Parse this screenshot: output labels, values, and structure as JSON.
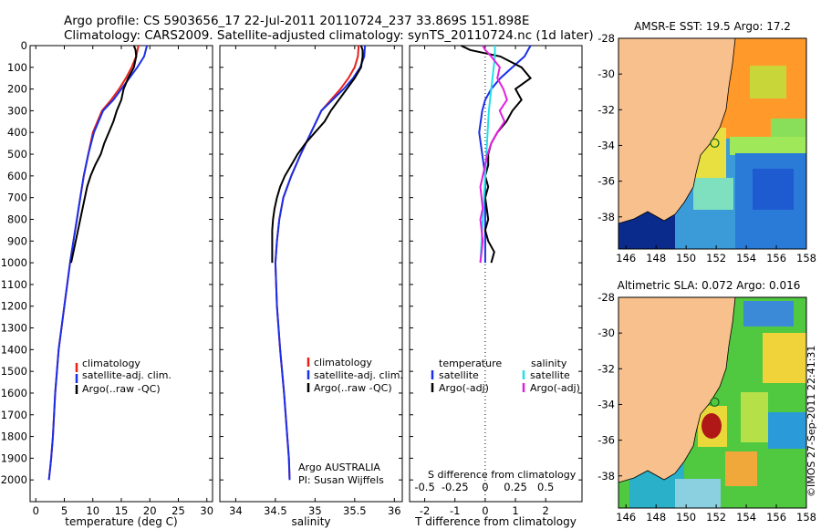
{
  "header": {
    "line1": "Argo profile: CS 5903656_17 22-Jul-2011 20110724_237 33.869S 151.898E",
    "line2": "Climatology: CARS2009. Satellite-adjusted climatology: synTS_20110724.nc (1d later)"
  },
  "colors": {
    "climatology": "#e8201a",
    "satellite": "#1a2fe8",
    "argo": "#000000",
    "sat_salinity": "#22e0e8",
    "argo_salinity": "#e020e0",
    "land": "#f7c08c"
  },
  "chart_data": [
    {
      "id": "temperature",
      "type": "line",
      "xlabel": "temperature (deg C)",
      "ylabel": "",
      "xlim": [
        -1,
        31
      ],
      "ylim": [
        0,
        2100
      ],
      "y_inverted": true,
      "xticks": [
        0,
        5,
        10,
        15,
        20,
        25,
        30
      ],
      "yticks": [
        0,
        100,
        200,
        300,
        400,
        500,
        600,
        700,
        800,
        900,
        1000,
        1100,
        1200,
        1300,
        1400,
        1500,
        1600,
        1700,
        1800,
        1900,
        2000
      ],
      "legend": [
        "climatology",
        "satellite-adj. clim.",
        "Argo(..raw -QC)"
      ],
      "legend_position": "lower-center",
      "series": [
        {
          "name": "climatology",
          "color": "#e8201a",
          "x": [
            18.0,
            17.6,
            16.8,
            15.8,
            14.6,
            13.2,
            11.6,
            10.0,
            9.2,
            8.4,
            7.8,
            7.2,
            6.6,
            6.0,
            5.0,
            4.0,
            3.4,
            3.0,
            2.7,
            2.5,
            2.3
          ],
          "y": [
            0,
            50,
            100,
            150,
            200,
            250,
            300,
            400,
            500,
            600,
            700,
            800,
            900,
            1000,
            1200,
            1400,
            1600,
            1800,
            1900,
            1950,
            2000
          ]
        },
        {
          "name": "satellite-adj. clim.",
          "color": "#1a2fe8",
          "x": [
            19.5,
            19.0,
            17.8,
            16.4,
            15.0,
            13.6,
            11.8,
            10.2,
            9.2,
            8.4,
            7.8,
            7.2,
            6.6,
            6.0,
            5.0,
            4.0,
            3.4,
            3.0,
            2.7,
            2.5,
            2.3
          ],
          "y": [
            0,
            50,
            100,
            150,
            200,
            250,
            300,
            400,
            500,
            600,
            700,
            800,
            900,
            1000,
            1200,
            1400,
            1600,
            1800,
            1900,
            1950,
            2000
          ]
        },
        {
          "name": "Argo(..raw -QC)",
          "color": "#000000",
          "x": [
            17.2,
            17.5,
            17.6,
            17.2,
            16.2,
            15.4,
            15.0,
            14.2,
            13.6,
            12.8,
            12.0,
            11.4,
            10.4,
            9.6,
            9.0,
            8.6,
            8.2,
            7.8,
            7.4,
            7.0,
            6.6,
            6.2
          ],
          "y": [
            0,
            20,
            50,
            100,
            150,
            200,
            250,
            300,
            350,
            400,
            450,
            500,
            550,
            600,
            650,
            700,
            750,
            800,
            850,
            900,
            950,
            1000
          ]
        }
      ]
    },
    {
      "id": "salinity",
      "type": "line",
      "xlabel": "salinity",
      "xlim": [
        33.8,
        36.1
      ],
      "ylim": [
        0,
        2100
      ],
      "y_inverted": true,
      "xticks": [
        34,
        34.5,
        35,
        35.5,
        36
      ],
      "xtick_labels": [
        "34",
        "34.5",
        "35",
        "35.5",
        "36"
      ],
      "legend": [
        "climatology",
        "satellite-adj. clim.",
        "Argo(..raw -QC)"
      ],
      "legend_position": "lower-right",
      "annotation": [
        "Argo AUSTRALIA",
        "PI: Susan Wijffels"
      ],
      "series": [
        {
          "name": "climatology",
          "color": "#e8201a",
          "x": [
            35.55,
            35.54,
            35.5,
            35.42,
            35.32,
            35.2,
            35.08,
            34.95,
            34.82,
            34.7,
            34.6,
            34.55,
            34.52,
            34.5,
            34.52,
            34.56,
            34.61,
            34.65,
            34.67,
            34.68
          ],
          "y": [
            0,
            50,
            100,
            150,
            200,
            250,
            300,
            400,
            500,
            600,
            700,
            800,
            900,
            1000,
            1200,
            1400,
            1600,
            1800,
            1900,
            2000
          ]
        },
        {
          "name": "satellite-adj. clim.",
          "color": "#1a2fe8",
          "x": [
            35.63,
            35.62,
            35.57,
            35.48,
            35.36,
            35.22,
            35.08,
            34.95,
            34.82,
            34.7,
            34.6,
            34.55,
            34.52,
            34.5,
            34.52,
            34.56,
            34.61,
            34.65,
            34.67,
            34.68
          ],
          "y": [
            0,
            50,
            100,
            150,
            200,
            250,
            300,
            400,
            500,
            600,
            700,
            800,
            900,
            1000,
            1200,
            1400,
            1600,
            1800,
            1900,
            2000
          ]
        },
        {
          "name": "Argo(..raw -QC)",
          "color": "#000000",
          "x": [
            35.58,
            35.6,
            35.6,
            35.58,
            35.5,
            35.4,
            35.3,
            35.2,
            35.12,
            35.0,
            34.88,
            34.78,
            34.7,
            34.62,
            34.56,
            34.52,
            34.49,
            34.47,
            34.46,
            34.46,
            34.46
          ],
          "y": [
            0,
            20,
            50,
            100,
            150,
            200,
            250,
            300,
            350,
            400,
            450,
            500,
            550,
            600,
            650,
            700,
            750,
            800,
            850,
            900,
            1000
          ]
        }
      ]
    },
    {
      "id": "difference",
      "type": "line",
      "xlabel": "T difference from climatology",
      "top_label": "S difference from climatology",
      "xlim": [
        -2.5,
        3.2
      ],
      "ylim": [
        0,
        2100
      ],
      "y_inverted": true,
      "xticks": [
        -2,
        -1,
        0,
        1,
        2
      ],
      "xtick_labels": [
        "-2",
        "-1",
        "0",
        "1",
        "2"
      ],
      "sticks": [
        -0.5,
        -0.25,
        0,
        0.25,
        0.5
      ],
      "stick_labels": [
        "-0.5",
        "-0.25",
        "0",
        "0.25",
        "0.5"
      ],
      "legend_temperature": {
        "title": "temperature",
        "items": [
          "satellite",
          "Argo(-adj)"
        ]
      },
      "legend_salinity": {
        "title": "salinity",
        "items": [
          "satellite",
          "Argo(-adj)"
        ]
      },
      "series": [
        {
          "name": "temperature satellite",
          "color": "#1a2fe8",
          "x": [
            1.5,
            1.3,
            0.9,
            0.5,
            0.2,
            0.0,
            -0.1,
            -0.2,
            -0.1,
            0.0,
            0.0,
            0.0,
            0.0,
            0.0
          ],
          "y": [
            0,
            50,
            100,
            150,
            200,
            250,
            300,
            400,
            500,
            600,
            700,
            800,
            900,
            1000
          ]
        },
        {
          "name": "temperature Argo(-adj)",
          "color": "#000000",
          "x": [
            -0.8,
            -0.5,
            0.5,
            1.2,
            1.5,
            1.0,
            1.2,
            0.9,
            0.7,
            0.4,
            0.2,
            0.1,
            0.1,
            0.0,
            0.1,
            0.0,
            0.05,
            0.1,
            0.0,
            0.1,
            0.3,
            0.2
          ],
          "y": [
            0,
            20,
            50,
            100,
            150,
            200,
            250,
            300,
            350,
            400,
            450,
            500,
            550,
            600,
            650,
            700,
            750,
            800,
            850,
            900,
            950,
            1000
          ]
        },
        {
          "name": "salinity satellite",
          "color": "#22e0e8",
          "x": [
            0.08,
            0.08,
            0.07,
            0.06,
            0.05,
            0.04,
            0.03,
            0.02,
            0.01,
            0.0,
            -0.01,
            -0.02,
            -0.03,
            -0.04
          ],
          "y": [
            0,
            50,
            100,
            150,
            200,
            250,
            300,
            400,
            500,
            600,
            700,
            800,
            900,
            1000
          ]
        },
        {
          "name": "salinity Argo(-adj)",
          "color": "#e020e0",
          "x": [
            -0.02,
            0.0,
            0.05,
            0.12,
            0.1,
            0.15,
            0.18,
            0.12,
            0.16,
            0.1,
            0.05,
            0.02,
            0.0,
            -0.02,
            -0.04,
            -0.03,
            -0.02,
            -0.04,
            -0.03,
            -0.02,
            -0.04
          ],
          "y": [
            0,
            20,
            50,
            100,
            150,
            200,
            250,
            300,
            350,
            400,
            450,
            500,
            550,
            600,
            650,
            700,
            750,
            800,
            850,
            900,
            1000
          ]
        }
      ]
    },
    {
      "id": "sst_map",
      "type": "heatmap",
      "title": "AMSR-E SST: 19.5 Argo: 17.2",
      "xlim": [
        145.5,
        158
      ],
      "ylim": [
        -39.8,
        -28
      ],
      "xticks": [
        146,
        148,
        150,
        152,
        154,
        156,
        158
      ],
      "yticks": [
        -28,
        -30,
        -32,
        -34,
        -36,
        -38
      ],
      "marker": {
        "lon": 151.898,
        "lat": -33.869
      }
    },
    {
      "id": "sla_map",
      "type": "heatmap",
      "title": "Altimetric SLA: 0.072 Argo: 0.016",
      "xlim": [
        145.5,
        158
      ],
      "ylim": [
        -39.8,
        -28
      ],
      "xticks": [
        146,
        148,
        150,
        152,
        154,
        156,
        158
      ],
      "yticks": [
        -28,
        -30,
        -32,
        -34,
        -36,
        -38
      ],
      "marker": {
        "lon": 151.898,
        "lat": -33.869
      }
    }
  ],
  "watermark": "©IMOS 27-Sep-2011 22:41:31"
}
